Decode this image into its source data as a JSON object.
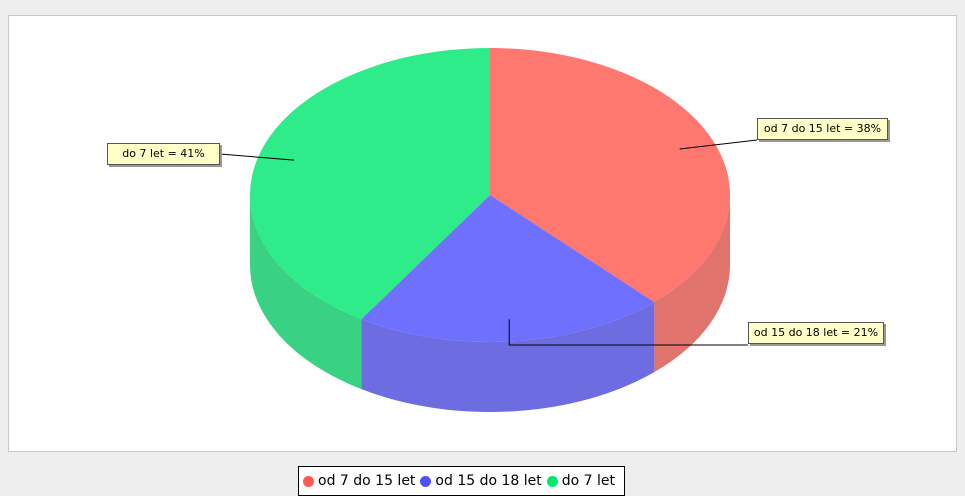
{
  "chart_data": {
    "type": "pie3d",
    "categories": [
      "od 7 do 15 let",
      "od 15 do 18 let",
      "do 7 let"
    ],
    "values": [
      38,
      21,
      41
    ],
    "value_labels": [
      "od 7 do 15 let = 38%",
      "od 15 do 18 let = 21%",
      "do 7 let = 41%"
    ],
    "colors": [
      "#ff5a50",
      "#5050ff",
      "#00e870"
    ],
    "legend": "bottom"
  }
}
